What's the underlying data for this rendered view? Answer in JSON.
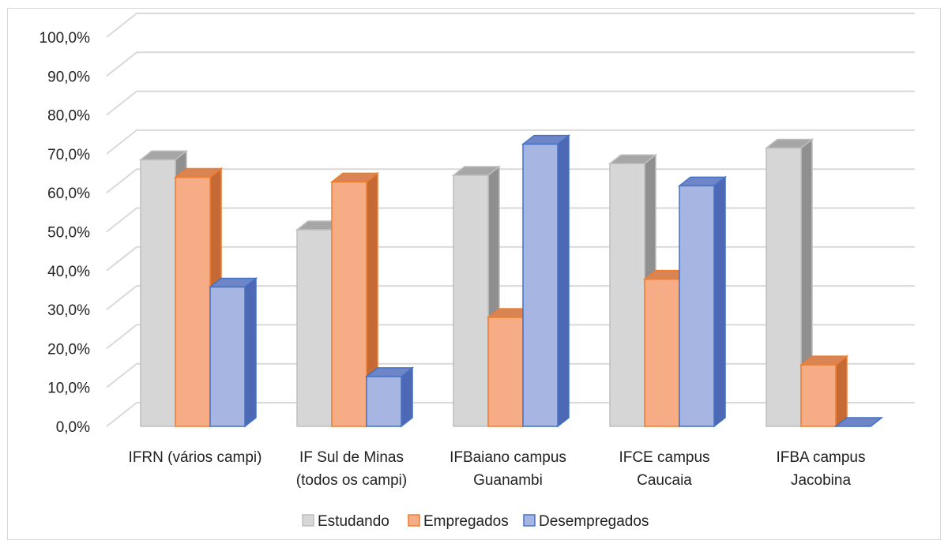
{
  "chart_data": {
    "type": "bar",
    "categories": [
      [
        "IFRN (vários campi)"
      ],
      [
        "IF Sul de Minas",
        "(todos os campi)"
      ],
      [
        "IFBaiano campus",
        "Guanambi"
      ],
      [
        "IFCE campus",
        "Caucaia"
      ],
      [
        "IFBA campus",
        "Jacobina"
      ]
    ],
    "series": [
      {
        "name": "Estudando",
        "values": [
          68.5,
          50.5,
          64.5,
          67.5,
          71.5
        ],
        "front": "#d6d6d6",
        "side": "#8f8f8f",
        "top": "#a6a6a6",
        "edge": "#bdbdbd"
      },
      {
        "name": "Empregados",
        "values": [
          64.0,
          62.8,
          28.0,
          37.8,
          15.8
        ],
        "front": "#f6ad86",
        "side": "#c66a35",
        "top": "#d98452",
        "edge": "#ed7d31"
      },
      {
        "name": "Desempregados",
        "values": [
          35.8,
          12.8,
          72.5,
          61.8,
          0.0
        ],
        "front": "#a6b5e2",
        "side": "#4d68b4",
        "top": "#6e86c8",
        "edge": "#4472c4"
      }
    ],
    "y_ticks": [
      "0,0%",
      "10,0%",
      "20,0%",
      "30,0%",
      "40,0%",
      "50,0%",
      "60,0%",
      "70,0%",
      "80,0%",
      "90,0%",
      "100,0%"
    ],
    "ylim": [
      0,
      100
    ],
    "grid": true,
    "legend_position": "bottom",
    "three_d": true
  }
}
